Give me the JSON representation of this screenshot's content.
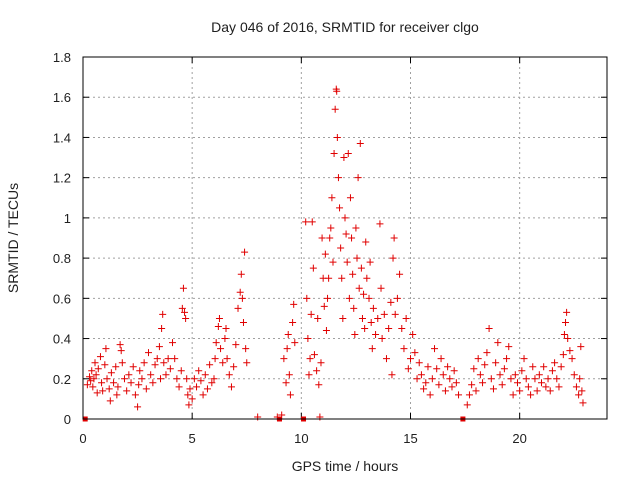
{
  "chart_data": {
    "type": "scatter",
    "title": "Day 046 of 2016, SRMTID for receiver clgo",
    "xlabel": "GPS time / hours",
    "ylabel": "SRMTID / TECUs",
    "xlim": [
      0,
      24
    ],
    "ylim": [
      0,
      1.8
    ],
    "x_ticks": [
      0,
      5,
      10,
      15,
      20
    ],
    "x_tick_labels": [
      "0",
      "5",
      "10",
      "15",
      "20"
    ],
    "y_ticks": [
      0,
      0.2,
      0.4,
      0.6,
      0.8,
      1.0,
      1.2,
      1.4,
      1.6,
      1.8
    ],
    "y_tick_labels": [
      "0",
      "0.2",
      "0.4",
      "0.6",
      "0.8",
      "1",
      "1.2",
      "1.4",
      "1.6",
      "1.8"
    ],
    "grid": true,
    "marker": "+",
    "marker_color": "#e00000",
    "gap_markers_x": [
      0.1,
      9.0,
      10.1,
      17.4
    ],
    "series": [
      {
        "name": "SRMTID",
        "points": [
          [
            0.2,
            0.17
          ],
          [
            0.3,
            0.21
          ],
          [
            0.35,
            0.19
          ],
          [
            0.4,
            0.24
          ],
          [
            0.45,
            0.16
          ],
          [
            0.5,
            0.2
          ],
          [
            0.55,
            0.28
          ],
          [
            0.6,
            0.22
          ],
          [
            0.65,
            0.13
          ],
          [
            0.7,
            0.25
          ],
          [
            0.8,
            0.31
          ],
          [
            0.85,
            0.18
          ],
          [
            0.9,
            0.14
          ],
          [
            1.0,
            0.27
          ],
          [
            1.05,
            0.35
          ],
          [
            1.1,
            0.2
          ],
          [
            1.2,
            0.15
          ],
          [
            1.25,
            0.09
          ],
          [
            1.3,
            0.23
          ],
          [
            1.4,
            0.18
          ],
          [
            1.5,
            0.26
          ],
          [
            1.55,
            0.12
          ],
          [
            1.6,
            0.16
          ],
          [
            1.7,
            0.37
          ],
          [
            1.75,
            0.34
          ],
          [
            1.8,
            0.28
          ],
          [
            1.9,
            0.2
          ],
          [
            2.0,
            0.14
          ],
          [
            2.1,
            0.22
          ],
          [
            2.2,
            0.18
          ],
          [
            2.3,
            0.26
          ],
          [
            2.4,
            0.12
          ],
          [
            2.5,
            0.06
          ],
          [
            2.55,
            0.17
          ],
          [
            2.6,
            0.24
          ],
          [
            2.7,
            0.2
          ],
          [
            2.8,
            0.28
          ],
          [
            2.9,
            0.15
          ],
          [
            3.0,
            0.33
          ],
          [
            3.1,
            0.22
          ],
          [
            3.2,
            0.18
          ],
          [
            3.3,
            0.27
          ],
          [
            3.4,
            0.3
          ],
          [
            3.5,
            0.36
          ],
          [
            3.55,
            0.2
          ],
          [
            3.6,
            0.45
          ],
          [
            3.65,
            0.52
          ],
          [
            3.7,
            0.28
          ],
          [
            3.8,
            0.22
          ],
          [
            3.9,
            0.3
          ],
          [
            4.0,
            0.25
          ],
          [
            4.1,
            0.38
          ],
          [
            4.2,
            0.3
          ],
          [
            4.3,
            0.2
          ],
          [
            4.4,
            0.16
          ],
          [
            4.5,
            0.24
          ],
          [
            4.55,
            0.55
          ],
          [
            4.6,
            0.65
          ],
          [
            4.65,
            0.53
          ],
          [
            4.7,
            0.5
          ],
          [
            4.75,
            0.2
          ],
          [
            4.8,
            0.12
          ],
          [
            4.85,
            0.07
          ],
          [
            4.9,
            0.15
          ],
          [
            5.0,
            0.1
          ],
          [
            5.1,
            0.2
          ],
          [
            5.2,
            0.16
          ],
          [
            5.3,
            0.24
          ],
          [
            5.4,
            0.19
          ],
          [
            5.5,
            0.12
          ],
          [
            5.6,
            0.22
          ],
          [
            5.7,
            0.15
          ],
          [
            5.8,
            0.27
          ],
          [
            5.9,
            0.18
          ],
          [
            6.0,
            0.2
          ],
          [
            6.05,
            0.3
          ],
          [
            6.1,
            0.38
          ],
          [
            6.2,
            0.46
          ],
          [
            6.25,
            0.5
          ],
          [
            6.3,
            0.35
          ],
          [
            6.4,
            0.28
          ],
          [
            6.5,
            0.4
          ],
          [
            6.55,
            0.45
          ],
          [
            6.6,
            0.3
          ],
          [
            6.7,
            0.22
          ],
          [
            6.8,
            0.16
          ],
          [
            6.9,
            0.26
          ],
          [
            7.0,
            0.37
          ],
          [
            7.1,
            0.55
          ],
          [
            7.2,
            0.63
          ],
          [
            7.25,
            0.72
          ],
          [
            7.3,
            0.6
          ],
          [
            7.35,
            0.48
          ],
          [
            7.4,
            0.83
          ],
          [
            7.45,
            0.35
          ],
          [
            7.5,
            0.28
          ],
          [
            8.0,
            0.01
          ],
          [
            8.9,
            0.01
          ],
          [
            9.1,
            0.02
          ],
          [
            9.2,
            0.3
          ],
          [
            9.3,
            0.18
          ],
          [
            9.35,
            0.35
          ],
          [
            9.4,
            0.42
          ],
          [
            9.45,
            0.22
          ],
          [
            9.5,
            0.12
          ],
          [
            9.6,
            0.48
          ],
          [
            9.65,
            0.57
          ],
          [
            9.7,
            0.38
          ],
          [
            10.2,
            0.98
          ],
          [
            10.25,
            0.6
          ],
          [
            10.3,
            0.4
          ],
          [
            10.35,
            0.22
          ],
          [
            10.4,
            0.3
          ],
          [
            10.45,
            0.52
          ],
          [
            10.5,
            0.98
          ],
          [
            10.55,
            0.75
          ],
          [
            10.6,
            0.32
          ],
          [
            10.7,
            0.24
          ],
          [
            10.75,
            0.5
          ],
          [
            10.8,
            0.17
          ],
          [
            10.85,
            0.01
          ],
          [
            10.9,
            0.28
          ],
          [
            10.95,
            0.9
          ],
          [
            11.0,
            0.7
          ],
          [
            11.05,
            0.56
          ],
          [
            11.1,
            0.82
          ],
          [
            11.15,
            0.44
          ],
          [
            11.2,
            0.6
          ],
          [
            11.25,
            0.7
          ],
          [
            11.3,
            0.9
          ],
          [
            11.35,
            0.95
          ],
          [
            11.4,
            1.1
          ],
          [
            11.45,
            0.78
          ],
          [
            11.5,
            1.32
          ],
          [
            11.55,
            1.54
          ],
          [
            11.6,
            1.64
          ],
          [
            11.62,
            1.63
          ],
          [
            11.65,
            1.4
          ],
          [
            11.7,
            1.2
          ],
          [
            11.75,
            1.05
          ],
          [
            11.8,
            0.85
          ],
          [
            11.85,
            0.7
          ],
          [
            11.9,
            0.5
          ],
          [
            11.95,
            1.3
          ],
          [
            12.0,
            1.0
          ],
          [
            12.05,
            0.92
          ],
          [
            12.1,
            0.78
          ],
          [
            12.15,
            1.32
          ],
          [
            12.2,
            0.6
          ],
          [
            12.25,
            1.1
          ],
          [
            12.3,
            0.9
          ],
          [
            12.35,
            0.72
          ],
          [
            12.4,
            0.55
          ],
          [
            12.45,
            0.42
          ],
          [
            12.5,
            0.95
          ],
          [
            12.55,
            0.8
          ],
          [
            12.6,
            1.2
          ],
          [
            12.65,
            0.65
          ],
          [
            12.7,
            1.37
          ],
          [
            12.75,
            0.75
          ],
          [
            12.8,
            0.5
          ],
          [
            12.85,
            0.62
          ],
          [
            12.9,
            0.45
          ],
          [
            12.95,
            0.88
          ],
          [
            13.0,
            0.7
          ],
          [
            13.1,
            0.6
          ],
          [
            13.15,
            0.78
          ],
          [
            13.2,
            0.48
          ],
          [
            13.25,
            0.35
          ],
          [
            13.3,
            0.55
          ],
          [
            13.4,
            0.42
          ],
          [
            13.5,
            0.5
          ],
          [
            13.6,
            0.97
          ],
          [
            13.65,
            0.65
          ],
          [
            13.7,
            0.4
          ],
          [
            13.8,
            0.52
          ],
          [
            13.9,
            0.3
          ],
          [
            14.0,
            0.45
          ],
          [
            14.1,
            0.58
          ],
          [
            14.15,
            0.22
          ],
          [
            14.2,
            0.8
          ],
          [
            14.25,
            0.9
          ],
          [
            14.3,
            0.52
          ],
          [
            14.4,
            0.6
          ],
          [
            14.5,
            0.72
          ],
          [
            14.6,
            0.45
          ],
          [
            14.7,
            0.35
          ],
          [
            14.8,
            0.5
          ],
          [
            14.9,
            0.25
          ],
          [
            15.0,
            0.3
          ],
          [
            15.1,
            0.42
          ],
          [
            15.2,
            0.33
          ],
          [
            15.3,
            0.2
          ],
          [
            15.4,
            0.28
          ],
          [
            15.5,
            0.22
          ],
          [
            15.6,
            0.15
          ],
          [
            15.7,
            0.18
          ],
          [
            15.8,
            0.26
          ],
          [
            15.9,
            0.12
          ],
          [
            16.0,
            0.2
          ],
          [
            16.1,
            0.35
          ],
          [
            16.2,
            0.25
          ],
          [
            16.3,
            0.17
          ],
          [
            16.4,
            0.3
          ],
          [
            16.5,
            0.22
          ],
          [
            16.6,
            0.14
          ],
          [
            16.7,
            0.26
          ],
          [
            16.8,
            0.2
          ],
          [
            16.9,
            0.16
          ],
          [
            17.0,
            0.24
          ],
          [
            17.1,
            0.18
          ],
          [
            17.2,
            0.12
          ],
          [
            17.6,
            0.07
          ],
          [
            17.7,
            0.12
          ],
          [
            17.8,
            0.17
          ],
          [
            17.9,
            0.25
          ],
          [
            18.0,
            0.14
          ],
          [
            18.1,
            0.3
          ],
          [
            18.2,
            0.22
          ],
          [
            18.3,
            0.18
          ],
          [
            18.4,
            0.27
          ],
          [
            18.5,
            0.33
          ],
          [
            18.6,
            0.45
          ],
          [
            18.7,
            0.2
          ],
          [
            18.8,
            0.15
          ],
          [
            18.9,
            0.28
          ],
          [
            19.0,
            0.38
          ],
          [
            19.1,
            0.22
          ],
          [
            19.2,
            0.17
          ],
          [
            19.3,
            0.25
          ],
          [
            19.4,
            0.3
          ],
          [
            19.5,
            0.36
          ],
          [
            19.6,
            0.2
          ],
          [
            19.7,
            0.12
          ],
          [
            19.8,
            0.22
          ],
          [
            19.9,
            0.18
          ],
          [
            20.0,
            0.14
          ],
          [
            20.1,
            0.24
          ],
          [
            20.2,
            0.3
          ],
          [
            20.3,
            0.2
          ],
          [
            20.4,
            0.16
          ],
          [
            20.5,
            0.12
          ],
          [
            20.6,
            0.26
          ],
          [
            20.7,
            0.2
          ],
          [
            20.8,
            0.14
          ],
          [
            20.9,
            0.22
          ],
          [
            21.0,
            0.18
          ],
          [
            21.1,
            0.26
          ],
          [
            21.2,
            0.16
          ],
          [
            21.3,
            0.2
          ],
          [
            21.4,
            0.14
          ],
          [
            21.5,
            0.24
          ],
          [
            21.6,
            0.28
          ],
          [
            21.7,
            0.2
          ],
          [
            21.8,
            0.16
          ],
          [
            21.9,
            0.26
          ],
          [
            22.0,
            0.32
          ],
          [
            22.05,
            0.42
          ],
          [
            22.1,
            0.48
          ],
          [
            22.15,
            0.53
          ],
          [
            22.2,
            0.4
          ],
          [
            22.3,
            0.34
          ],
          [
            22.4,
            0.3
          ],
          [
            22.5,
            0.22
          ],
          [
            22.6,
            0.16
          ],
          [
            22.7,
            0.12
          ],
          [
            22.75,
            0.2
          ],
          [
            22.8,
            0.36
          ],
          [
            22.85,
            0.14
          ],
          [
            22.9,
            0.08
          ]
        ]
      }
    ]
  }
}
